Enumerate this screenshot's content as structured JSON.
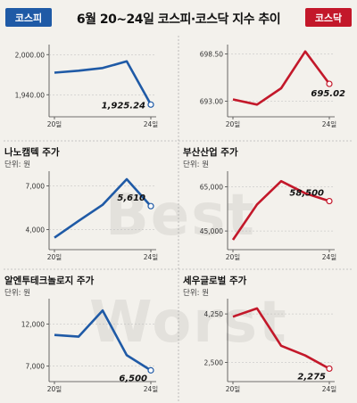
{
  "header": {
    "title": "6월 20~24일 코스피·코스닥 지수 추이",
    "left_badge": "코스피",
    "right_badge": "코스닥"
  },
  "watermark": [
    "Best",
    "Worst"
  ],
  "colors": {
    "kospi": "#1f5aa6",
    "kosdaq": "#c3182a"
  },
  "chart_data": [
    {
      "id": "kospi",
      "type": "line",
      "title": "",
      "unit": "",
      "color": "#1f5aa6",
      "x": [
        "20일",
        "21일",
        "22일",
        "23일",
        "24일"
      ],
      "x_tick_labels": [
        "20일",
        "24일"
      ],
      "values": [
        1973,
        1976,
        1980,
        1990,
        1925.24
      ],
      "y_ticks": [
        "2,000.00",
        "1,940.00"
      ],
      "y_tick_values": [
        2000,
        1940
      ],
      "ylim": [
        1915,
        2015
      ],
      "end_label": "1,925.24"
    },
    {
      "id": "kosdaq",
      "type": "line",
      "title": "",
      "unit": "",
      "color": "#c3182a",
      "x": [
        "20일",
        "21일",
        "22일",
        "23일",
        "24일"
      ],
      "x_tick_labels": [
        "20일",
        "24일"
      ],
      "values": [
        693.2,
        692.6,
        694.5,
        698.8,
        695.02
      ],
      "y_ticks": [
        "698.50",
        "693.00"
      ],
      "y_tick_values": [
        698.5,
        693.0
      ],
      "ylim": [
        691.8,
        699.6
      ],
      "end_label": "695.02"
    },
    {
      "id": "nanocamtech",
      "type": "line",
      "title": "나노캠텍 주가",
      "unit": "단위: 원",
      "color": "#1f5aa6",
      "x": [
        "20일",
        "21일",
        "22일",
        "23일",
        "24일"
      ],
      "x_tick_labels": [
        "20일",
        "24일"
      ],
      "values": [
        3450,
        4600,
        5700,
        7450,
        5610
      ],
      "y_ticks": [
        "7,000",
        "4,000"
      ],
      "y_tick_values": [
        7000,
        4000
      ],
      "ylim": [
        3000,
        8000
      ],
      "end_label": "5,610"
    },
    {
      "id": "busan",
      "type": "line",
      "title": "부산산업 주가",
      "unit": "단위: 원",
      "color": "#c3182a",
      "x": [
        "20일",
        "21일",
        "22일",
        "23일",
        "24일"
      ],
      "x_tick_labels": [
        "20일",
        "24일"
      ],
      "values": [
        41000,
        57000,
        67500,
        62000,
        58500
      ],
      "y_ticks": [
        "65,000",
        "45,000"
      ],
      "y_tick_values": [
        65000,
        45000
      ],
      "ylim": [
        39000,
        72000
      ],
      "end_label": "58,500"
    },
    {
      "id": "alrun",
      "type": "line",
      "title": "알엔투테크놀로지 주가",
      "unit": "단위: 원",
      "color": "#1f5aa6",
      "x": [
        "20일",
        "21일",
        "22일",
        "23일",
        "24일"
      ],
      "x_tick_labels": [
        "20일",
        "24일"
      ],
      "values": [
        10700,
        10500,
        13600,
        8300,
        6500
      ],
      "y_ticks": [
        "12,000",
        "7,000"
      ],
      "y_tick_values": [
        12000,
        7000
      ],
      "ylim": [
        5800,
        15000
      ],
      "end_label": "6,500"
    },
    {
      "id": "sewoo",
      "type": "line",
      "title": "세우글로벌 주가",
      "unit": "단위: 원",
      "color": "#c3182a",
      "x": [
        "20일",
        "21일",
        "22일",
        "23일",
        "24일"
      ],
      "x_tick_labels": [
        "20일",
        "24일"
      ],
      "values": [
        4150,
        4450,
        3100,
        2750,
        2275
      ],
      "y_ticks": [
        "4,250",
        "2,500"
      ],
      "y_tick_values": [
        4250,
        2500
      ],
      "ylim": [
        2000,
        4800
      ],
      "end_label": "2,275"
    }
  ]
}
